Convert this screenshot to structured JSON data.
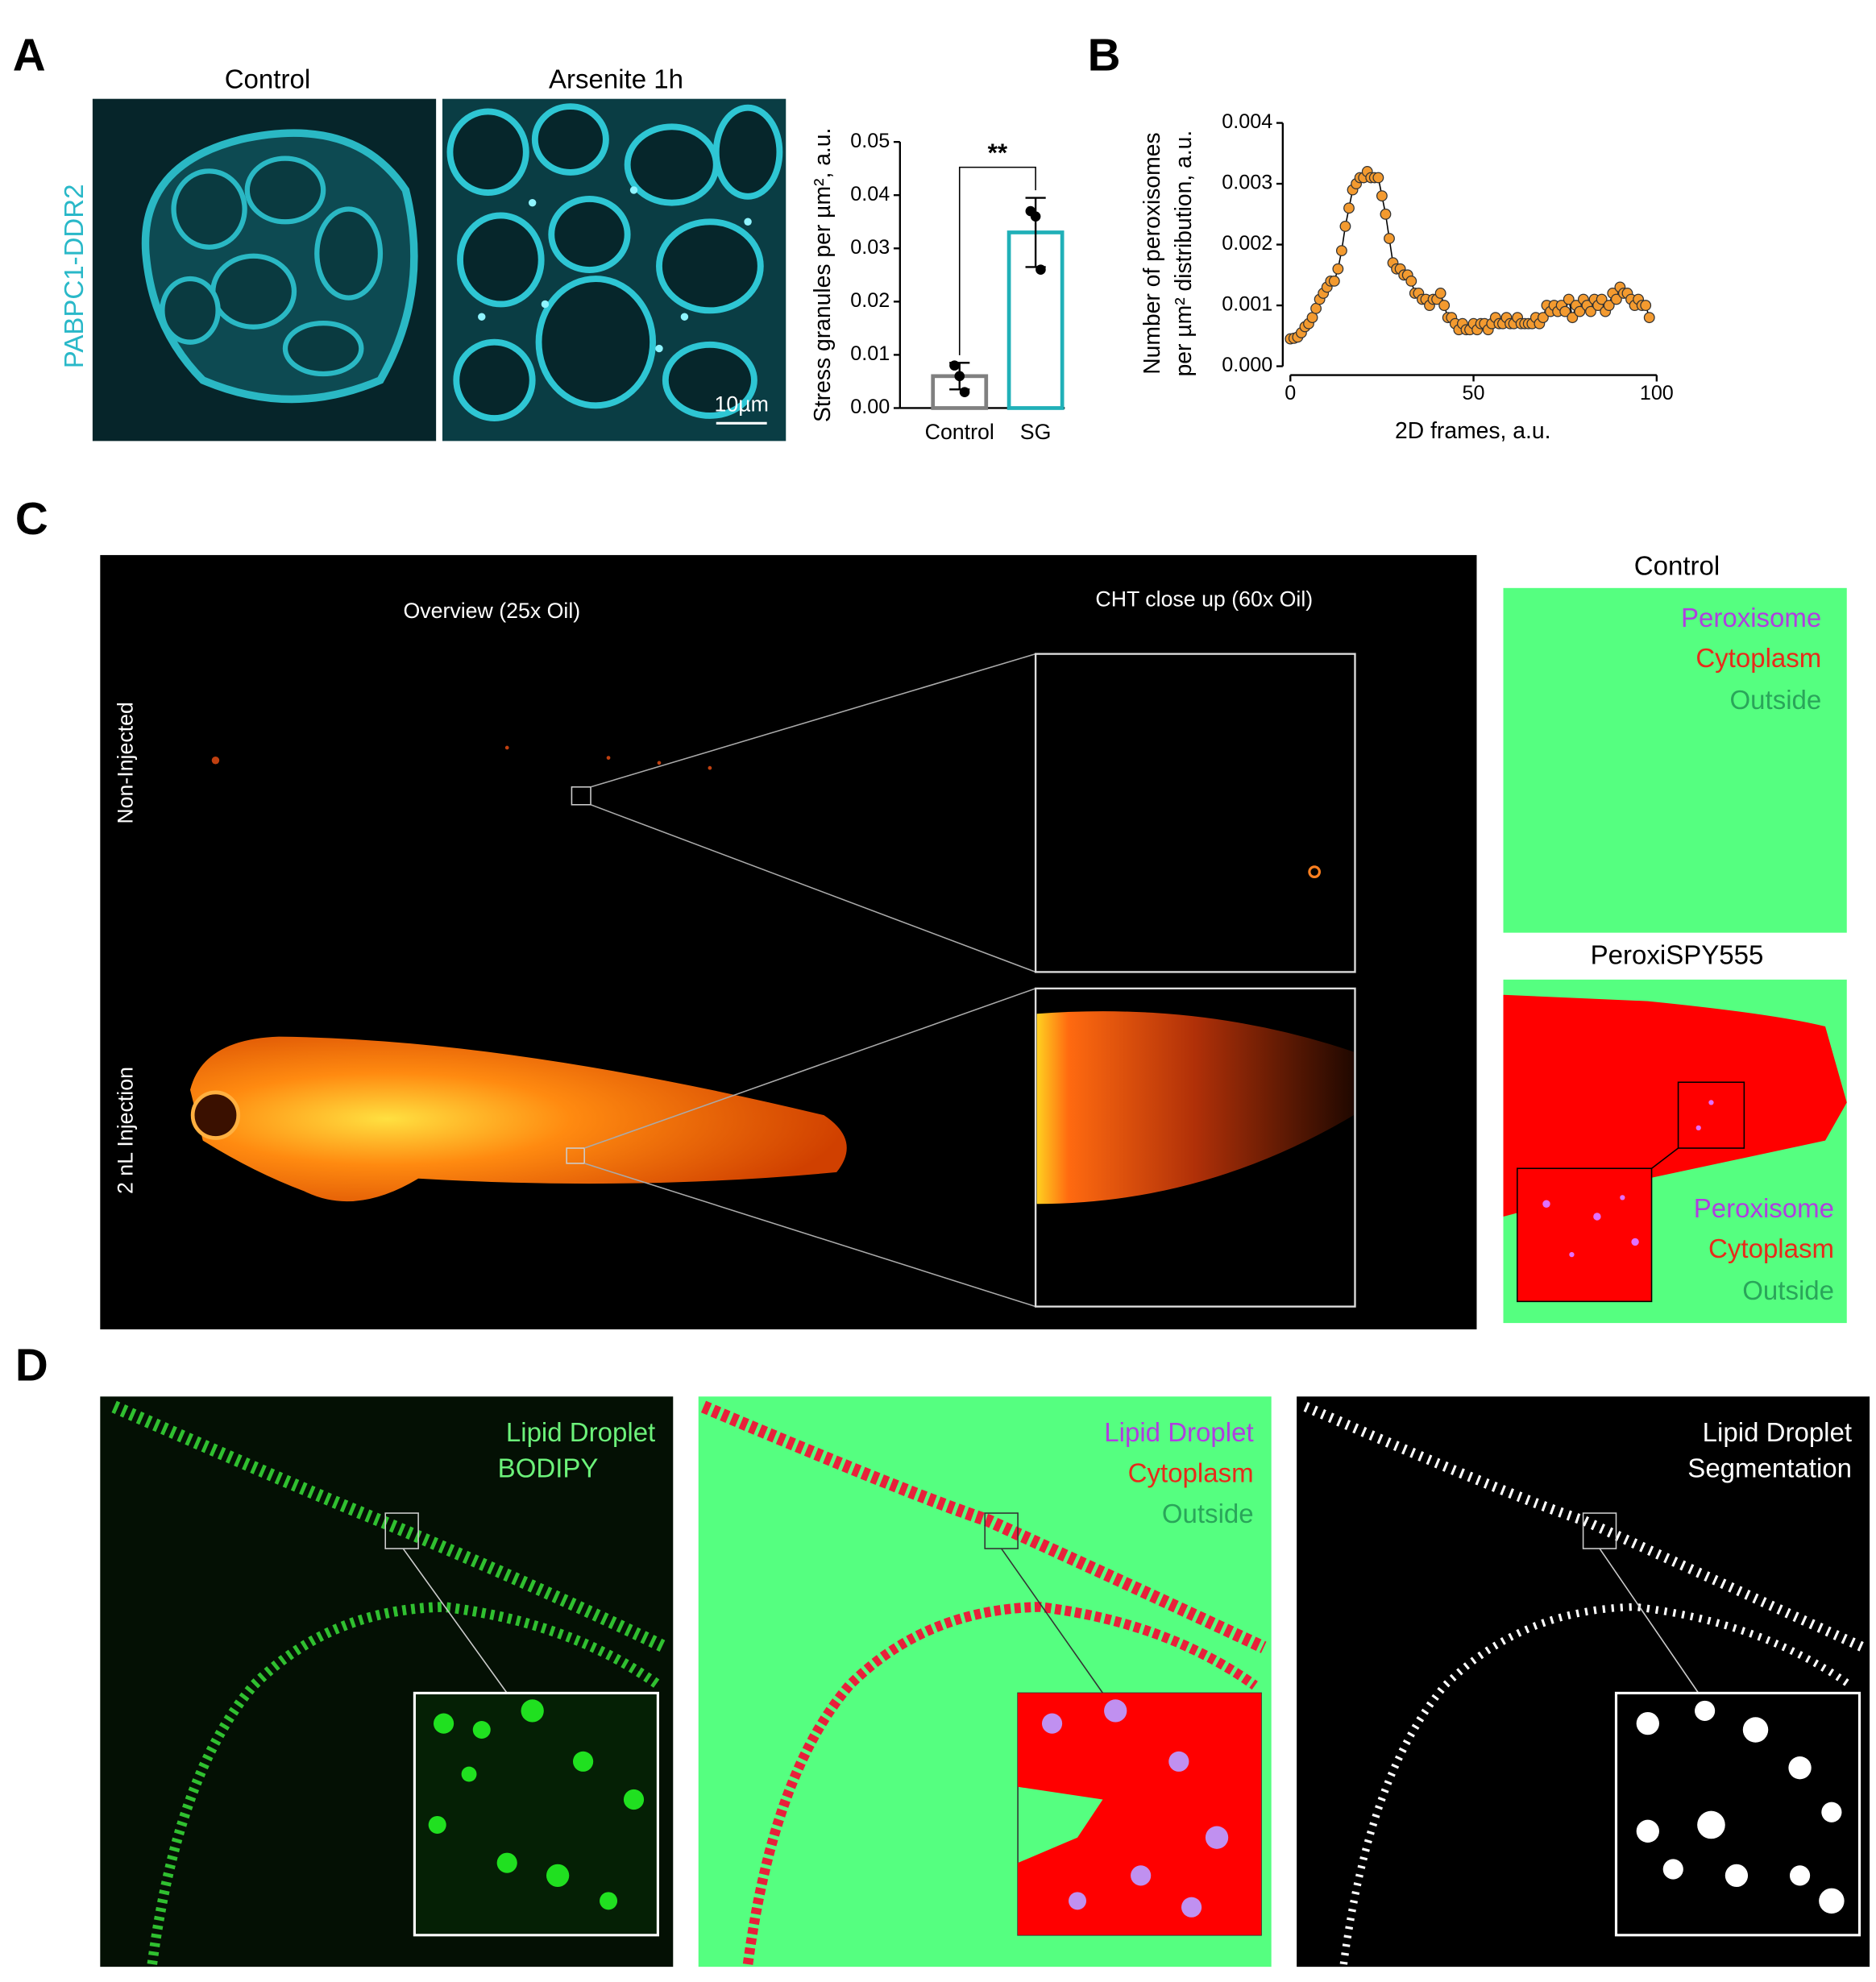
{
  "panel_a": {
    "label": "A",
    "images": [
      "Control",
      "Arsenite 1h"
    ],
    "stain": "PABPC1-DDR2",
    "scale_bar": "10µm"
  },
  "panel_b": {
    "label": "B"
  },
  "panel_c": {
    "label": "C",
    "overview": "Overview (25x Oil)",
    "closeup": "CHT close up (60x Oil)",
    "rows": [
      "Non-Injected",
      "2 nL Injection"
    ],
    "segmentations": [
      {
        "title": "Control",
        "legend": [
          "Peroxisome",
          "Cytoplasm",
          "Outside"
        ]
      },
      {
        "title": "PeroxiSPY555",
        "legend": [
          "Peroxisome",
          "Cytoplasm",
          "Outside"
        ]
      }
    ]
  },
  "panel_d": {
    "label": "D",
    "images": [
      [
        "Lipid Droplet",
        "BODIPY"
      ],
      [
        "Lipid Droplet",
        "Cytoplasm",
        "Outside"
      ],
      [
        "Lipid Droplet",
        "Segmentation"
      ]
    ]
  },
  "chart_data": [
    {
      "type": "bar",
      "y_label": "Stress granules per µm², a.u.",
      "categories": [
        "Control",
        "SG"
      ],
      "values": [
        0.006,
        0.033
      ],
      "errors": [
        0.0025,
        0.0065
      ],
      "points": [
        [
          0.008,
          0.006,
          0.003
        ],
        [
          0.037,
          0.036,
          0.026
        ]
      ],
      "colors": [
        "#808080",
        "#20b0b8"
      ],
      "annotation": "**",
      "ylim": [
        0,
        0.05
      ],
      "yticks": [
        {
          "value": 0,
          "label": "0.00"
        },
        0.01,
        0.02,
        0.03,
        0.04,
        0.05
      ]
    },
    {
      "type": "line",
      "x_label": "2D frames, a.u.",
      "y_label": [
        "Number of peroxisomes",
        "per µm² distribution, a.u."
      ],
      "color": "#f39a2f",
      "x": [
        0,
        1,
        2,
        3,
        4,
        5,
        6,
        7,
        8,
        9,
        10,
        11,
        12,
        13,
        14,
        15,
        16,
        17,
        18,
        19,
        20,
        21,
        22,
        23,
        24,
        25,
        26,
        27,
        28,
        29,
        30,
        31,
        32,
        33,
        34,
        35,
        36,
        37,
        38,
        39,
        40,
        41,
        42,
        43,
        44,
        45,
        46,
        47,
        48,
        49,
        50,
        51,
        52,
        53,
        54,
        55,
        56,
        57,
        58,
        59,
        60,
        61,
        62,
        63,
        64,
        65,
        66,
        67,
        68,
        69,
        70,
        71,
        72,
        73,
        74,
        75,
        76,
        77,
        78,
        79,
        80,
        81,
        82,
        83,
        84,
        85,
        86,
        87,
        88,
        89,
        90,
        91,
        92,
        93,
        94,
        95,
        96,
        97,
        98
      ],
      "values": [
        0.00045,
        0.00046,
        0.00048,
        0.00055,
        0.00065,
        0.0007,
        0.0008,
        0.00095,
        0.0011,
        0.0012,
        0.0013,
        0.0014,
        0.0014,
        0.0016,
        0.0019,
        0.0023,
        0.0026,
        0.0029,
        0.003,
        0.0031,
        0.0031,
        0.0032,
        0.0031,
        0.0031,
        0.0031,
        0.0028,
        0.0025,
        0.0021,
        0.0017,
        0.0016,
        0.0016,
        0.0015,
        0.0015,
        0.0014,
        0.0012,
        0.0012,
        0.0011,
        0.0011,
        0.001,
        0.0011,
        0.0011,
        0.0012,
        0.001,
        0.0008,
        0.0008,
        0.0007,
        0.0006,
        0.0007,
        0.0006,
        0.0006,
        0.0007,
        0.0006,
        0.0007,
        0.0007,
        0.0006,
        0.0007,
        0.0008,
        0.0007,
        0.0007,
        0.0008,
        0.0007,
        0.0007,
        0.0008,
        0.0007,
        0.0007,
        0.0007,
        0.0007,
        0.0008,
        0.0007,
        0.0008,
        0.001,
        0.0009,
        0.001,
        0.0009,
        0.001,
        0.0009,
        0.0011,
        0.0008,
        0.001,
        0.0009,
        0.0011,
        0.001,
        0.0009,
        0.0011,
        0.001,
        0.0011,
        0.0009,
        0.001,
        0.0012,
        0.0011,
        0.0013,
        0.0012,
        0.0012,
        0.0011,
        0.001,
        0.0011,
        0.001,
        0.001,
        0.0008
      ],
      "xlim": [
        0,
        100
      ],
      "xticks": [
        0,
        50,
        100
      ],
      "ylim": [
        0,
        0.004
      ],
      "yticks": [
        {
          "value": 0,
          "label": "0.000"
        },
        0.001,
        0.002,
        0.003,
        0.004
      ]
    }
  ]
}
